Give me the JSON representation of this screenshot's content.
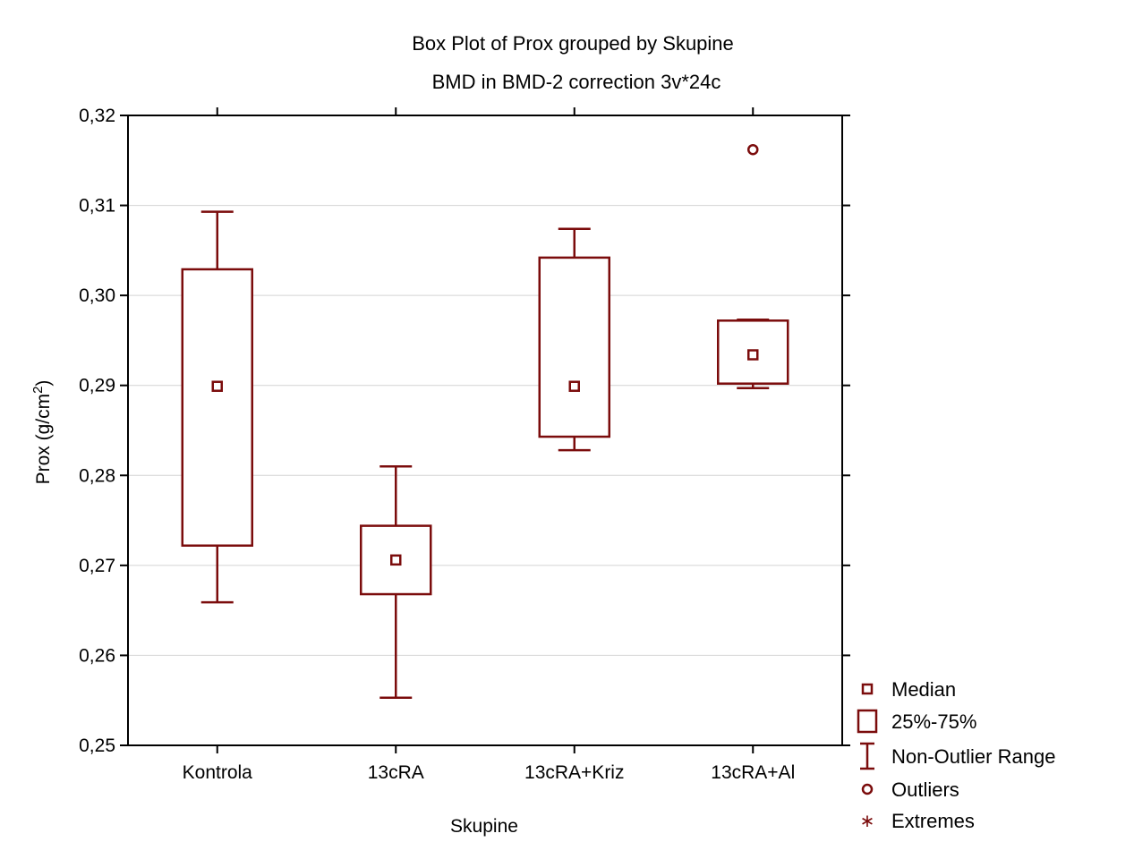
{
  "chart_data": {
    "type": "boxplot",
    "title": "Box Plot of Prox grouped by  Skupine",
    "subtitle": "BMD in BMD-2 correction 3v*24c",
    "xlabel": "Skupine",
    "ylabel": "Prox (g/cm",
    "ylabel_sup": "2",
    "ylabel_close": ")",
    "ylim": [
      0.25,
      0.32
    ],
    "yticks": [
      0.25,
      0.26,
      0.27,
      0.28,
      0.29,
      0.3,
      0.31,
      0.32
    ],
    "ytick_labels": [
      "0,25",
      "0,26",
      "0,27",
      "0,28",
      "0,29",
      "0,30",
      "0,31",
      "0,32"
    ],
    "grid": true,
    "color": "#7b0c0c",
    "categories": [
      "Kontrola",
      "13cRA",
      "13cRA+Kriz",
      "13cRA+Al"
    ],
    "boxes": [
      {
        "category": "Kontrola",
        "median": 0.2899,
        "q1": 0.2722,
        "q3": 0.3029,
        "whisker_low": 0.2659,
        "whisker_high": 0.3093,
        "outliers": []
      },
      {
        "category": "13cRA",
        "median": 0.2706,
        "q1": 0.2668,
        "q3": 0.2744,
        "whisker_low": 0.2553,
        "whisker_high": 0.281,
        "outliers": []
      },
      {
        "category": "13cRA+Kriz",
        "median": 0.2899,
        "q1": 0.2843,
        "q3": 0.3042,
        "whisker_low": 0.2828,
        "whisker_high": 0.3074,
        "outliers": []
      },
      {
        "category": "13cRA+Al",
        "median": 0.2934,
        "q1": 0.2902,
        "q3": 0.2972,
        "whisker_low": 0.2897,
        "whisker_high": 0.2973,
        "outliers": [
          0.3162
        ]
      }
    ],
    "legend": {
      "placement": "bottom-right",
      "items": [
        {
          "key": "median",
          "label": "Median"
        },
        {
          "key": "box",
          "label": "25%-75%"
        },
        {
          "key": "range",
          "label": "Non-Outlier Range"
        },
        {
          "key": "outlier",
          "label": "Outliers"
        },
        {
          "key": "extreme",
          "label": "Extremes"
        }
      ]
    }
  }
}
